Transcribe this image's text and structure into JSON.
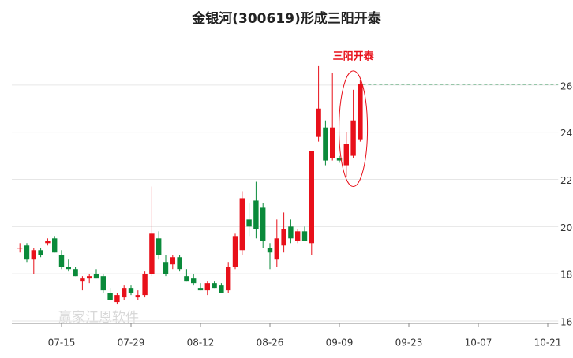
{
  "chart_data": {
    "type": "candlestick",
    "title": "金银河(300619)形成三阳开泰",
    "annotation": "三阳开泰",
    "watermark": "赢家江恩软件",
    "categories": [
      null,
      null,
      null,
      null,
      null,
      null,
      "07-15",
      null,
      null,
      null,
      null,
      null,
      null,
      null,
      null,
      null,
      "07-29",
      null,
      null,
      null,
      null,
      null,
      null,
      null,
      null,
      null,
      "08-12",
      null,
      null,
      null,
      null,
      null,
      null,
      null,
      null,
      null,
      "08-26",
      null,
      null,
      null,
      null,
      null,
      null,
      null,
      null,
      null,
      "09-09",
      null,
      null,
      null,
      null,
      null,
      null,
      null,
      null,
      null,
      "09-23",
      null,
      null,
      null,
      null,
      null,
      null,
      null,
      null,
      null,
      "10-07",
      null,
      null,
      null,
      null,
      null,
      null,
      null,
      null,
      null,
      "10-21",
      null
    ],
    "open": [
      19.1,
      19.2,
      18.6,
      19.0,
      19.3,
      19.5,
      18.8,
      18.3,
      18.2,
      17.7,
      17.8,
      18.0,
      17.9,
      17.2,
      16.8,
      17.0,
      17.4,
      17.0,
      17.1,
      18.0,
      19.5,
      18.5,
      18.4,
      18.7,
      17.9,
      17.8,
      17.4,
      17.3,
      17.6,
      17.5,
      17.3,
      18.3,
      19.0,
      20.3,
      21.1,
      20.8,
      19.1,
      18.6,
      19.2,
      20.0,
      19.4,
      19.8,
      19.3,
      23.8,
      24.2,
      22.9,
      22.9,
      22.6,
      23.0,
      23.7,
      null,
      null,
      null,
      null,
      null,
      null,
      null,
      null,
      null,
      null,
      null,
      null,
      null,
      null,
      null,
      null,
      null,
      null,
      null,
      null,
      null,
      null,
      null,
      null,
      null,
      null,
      null,
      null
    ],
    "high": [
      19.3,
      19.3,
      19.1,
      19.1,
      19.5,
      19.6,
      19.0,
      18.6,
      18.3,
      17.9,
      18.0,
      18.2,
      18.0,
      17.4,
      17.2,
      17.5,
      17.5,
      17.3,
      18.1,
      21.7,
      19.8,
      18.8,
      18.8,
      18.8,
      18.2,
      18.0,
      17.6,
      17.7,
      17.7,
      17.6,
      18.5,
      19.7,
      21.5,
      21.0,
      21.9,
      21.0,
      19.3,
      20.3,
      20.6,
      20.3,
      19.9,
      20.0,
      23.2,
      26.8,
      24.5,
      26.5,
      23.0,
      24.0,
      25.8,
      26.2,
      null,
      null,
      null,
      null,
      null,
      null,
      null,
      null,
      null,
      null,
      null,
      null,
      null,
      null,
      null,
      null,
      null,
      null,
      null,
      null,
      null,
      null,
      null,
      null,
      null,
      null,
      null,
      null
    ],
    "low": [
      18.9,
      18.5,
      18.0,
      18.7,
      19.2,
      18.9,
      18.2,
      18.1,
      17.9,
      17.3,
      17.6,
      17.8,
      17.2,
      16.9,
      16.7,
      16.9,
      17.1,
      16.9,
      17.0,
      17.9,
      18.6,
      17.9,
      18.2,
      18.1,
      17.7,
      17.5,
      17.3,
      17.1,
      17.4,
      17.2,
      17.2,
      18.2,
      18.8,
      19.6,
      19.5,
      19.1,
      18.2,
      18.3,
      18.9,
      19.3,
      19.3,
      19.4,
      18.8,
      23.6,
      22.6,
      22.8,
      22.7,
      22.1,
      22.9,
      23.6,
      null,
      null,
      null,
      null,
      null,
      null,
      null,
      null,
      null,
      null,
      null,
      null,
      null,
      null,
      null,
      null,
      null,
      null,
      null,
      null,
      null,
      null,
      null,
      null,
      null,
      null,
      null,
      null
    ],
    "close": [
      19.1,
      18.6,
      19.0,
      18.8,
      19.4,
      18.9,
      18.3,
      18.2,
      17.9,
      17.8,
      17.9,
      17.8,
      17.3,
      16.9,
      17.1,
      17.4,
      17.2,
      17.1,
      18.0,
      19.7,
      18.8,
      18.0,
      18.7,
      18.2,
      17.7,
      17.6,
      17.3,
      17.6,
      17.4,
      17.2,
      18.3,
      19.6,
      21.2,
      20.0,
      19.9,
      19.4,
      18.9,
      19.5,
      19.9,
      19.5,
      19.8,
      19.4,
      23.2,
      25.0,
      22.8,
      24.2,
      22.8,
      23.5,
      24.5,
      26.03,
      null,
      null,
      null,
      null,
      null,
      null,
      null,
      null,
      null,
      null,
      null,
      null,
      null,
      null,
      null,
      null,
      null,
      null,
      null,
      null,
      null,
      null,
      null,
      null,
      null,
      null,
      null,
      null
    ],
    "up_color": "#e8101a",
    "down_color": "#0a8a3a",
    "ylim": [
      15.9,
      28
    ],
    "yticks": [
      16,
      18,
      20,
      22,
      24,
      26
    ],
    "grid": true
  }
}
